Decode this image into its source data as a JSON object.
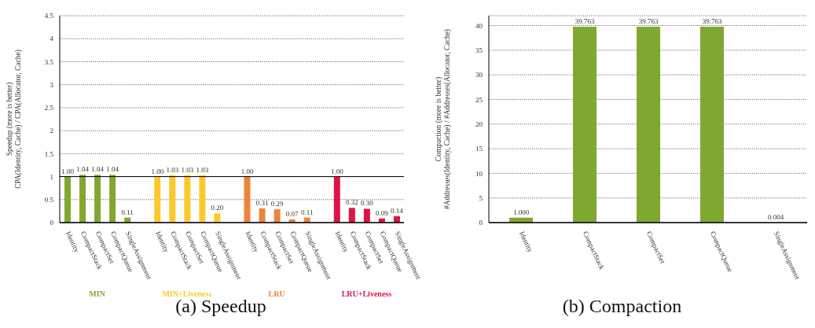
{
  "chart_data": [
    {
      "type": "bar",
      "title": "(a) Speedup",
      "ylabel": "Speedup (more is better)\nCPA(Identity, Cache) / CPA(Allocator, Cache)",
      "categories": [
        "Identity",
        "CompactStack",
        "CompactSet",
        "CompactQueue",
        "SingleAssignment",
        null,
        "Identity",
        "CompactStack",
        "CompactSet",
        "CompactQueue",
        "SingleAssignment",
        null,
        "Identity",
        "CompactStack",
        "CompactSet",
        "CompactQueue",
        "SingleAssignment",
        null,
        "Identity",
        "CompactStack",
        "CompactSet",
        "CompactQueue",
        "SingleAssignment"
      ],
      "series": [
        {
          "name": "MIN",
          "color": "#7fa82e",
          "values": [
            1.0,
            1.04,
            1.04,
            1.04,
            0.11,
            null,
            null,
            null,
            null,
            null,
            null,
            null,
            null,
            null,
            null,
            null,
            null,
            null,
            null,
            null,
            null,
            null,
            null
          ],
          "value_labels": [
            "1.00",
            "1.04",
            "1.04",
            "1.04",
            "0.11",
            null,
            null,
            null,
            null,
            null,
            null,
            null,
            null,
            null,
            null,
            null,
            null,
            null,
            null,
            null,
            null,
            null,
            null
          ]
        },
        {
          "name": "MIN+Liveness",
          "color": "#fdc82d",
          "values": [
            null,
            null,
            null,
            null,
            null,
            null,
            1.0,
            1.03,
            1.03,
            1.03,
            0.2,
            null,
            null,
            null,
            null,
            null,
            null,
            null,
            null,
            null,
            null,
            null,
            null
          ],
          "value_labels": [
            null,
            null,
            null,
            null,
            null,
            null,
            "1.00",
            "1.03",
            "1.03",
            "1.03",
            "0.20",
            null,
            null,
            null,
            null,
            null,
            null,
            null,
            null,
            null,
            null,
            null,
            null
          ]
        },
        {
          "name": "LRU",
          "color": "#ee843a",
          "values": [
            null,
            null,
            null,
            null,
            null,
            null,
            null,
            null,
            null,
            null,
            null,
            null,
            1.0,
            0.31,
            0.29,
            0.07,
            0.11,
            null,
            null,
            null,
            null,
            null,
            null
          ],
          "value_labels": [
            null,
            null,
            null,
            null,
            null,
            null,
            null,
            null,
            null,
            null,
            null,
            null,
            "1.00",
            "0.31",
            "0.29",
            "0.07",
            "0.11",
            null,
            null,
            null,
            null,
            null,
            null
          ]
        },
        {
          "name": "LRU+Liveness",
          "color": "#dc1446",
          "values": [
            null,
            null,
            null,
            null,
            null,
            null,
            null,
            null,
            null,
            null,
            null,
            null,
            null,
            null,
            null,
            null,
            null,
            null,
            1.0,
            0.32,
            0.3,
            0.09,
            0.14
          ],
          "value_labels": [
            null,
            null,
            null,
            null,
            null,
            null,
            null,
            null,
            null,
            null,
            null,
            null,
            null,
            null,
            null,
            null,
            null,
            null,
            "1.00",
            "0.32",
            "0.30",
            "0.09",
            "0.14"
          ]
        }
      ],
      "ylim": [
        0,
        4.5
      ],
      "yticks": [
        0,
        0.5,
        1,
        1.5,
        2,
        2.5,
        3,
        3.5,
        4,
        4.5
      ],
      "grid": "y",
      "ref_lines": [
        {
          "axis": "y",
          "value": 1,
          "color": "#000000",
          "line_style": "solid"
        }
      ]
    },
    {
      "type": "bar",
      "title": "(b) Compaction",
      "ylabel": "Compaction (more is better)\n#Addresses(Identity, Cache) / #Addresses(Allocator, Cache)",
      "categories": [
        "Identity",
        "CompactStack",
        "CompactSet",
        "CompactQueue",
        "SingleAssignment"
      ],
      "values": [
        1.0,
        39.763,
        39.763,
        39.763,
        0.004
      ],
      "color": "#7fa82e",
      "value_labels": [
        "1.000",
        "39.763",
        "39.763",
        "39.763",
        "0.004"
      ],
      "ylim": [
        0,
        42
      ],
      "yticks": [
        0,
        5,
        10,
        15,
        20,
        25,
        30,
        35,
        40
      ],
      "grid": "y"
    }
  ]
}
